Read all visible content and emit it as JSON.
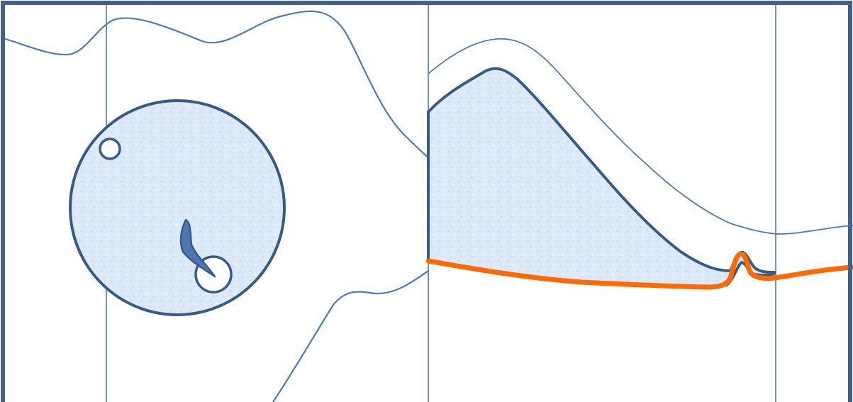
{
  "colors": {
    "frame": "#41608f",
    "thin_line": "#4f7ab5",
    "outline_dark": "#3a5a86",
    "fill_light": "#dbe9f8",
    "fill_light2": "#c9ddf3",
    "accent_orange": "#ff6a00",
    "marker_blue": "#4b78b5",
    "background": "#ffffff"
  },
  "elements": {
    "frame": "outer-frame",
    "left_panel_shape": "circle",
    "right_panel_shape": "triangular-region",
    "small_circle_count": 2,
    "orange_line": "bottom-boundary-line"
  }
}
